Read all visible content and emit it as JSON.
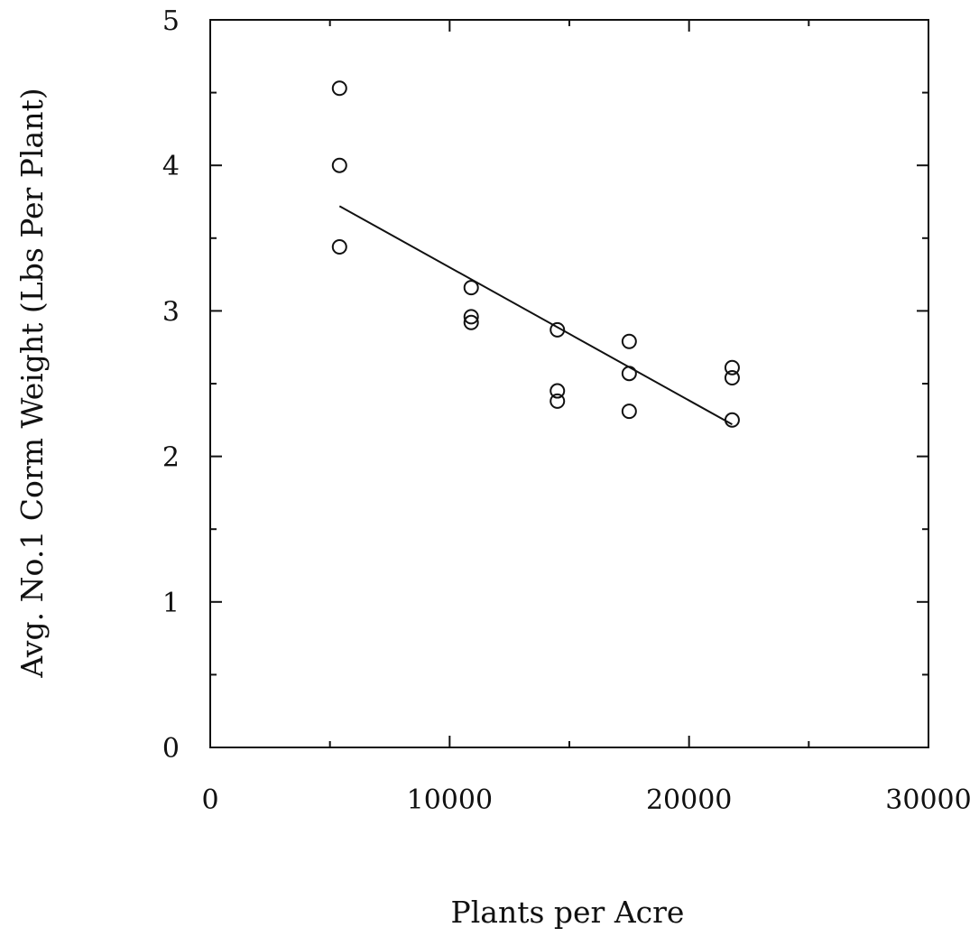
{
  "chart_data": {
    "type": "scatter",
    "title": "",
    "xlabel": "Plants per Acre",
    "ylabel": "Avg. No.1 Corm Weight (Lbs Per Plant)",
    "xlim": [
      0,
      30000
    ],
    "ylim": [
      0,
      5
    ],
    "x_ticks": [
      0,
      10000,
      20000,
      30000
    ],
    "x_tick_labels": [
      "0",
      "10000",
      "20000",
      "30000"
    ],
    "x_minor_ticks": [
      5000,
      15000,
      25000
    ],
    "y_ticks": [
      0,
      1,
      2,
      3,
      4,
      5
    ],
    "y_tick_labels": [
      "0",
      "1",
      "2",
      "3",
      "4",
      "5"
    ],
    "y_minor_ticks": [
      0.5,
      1.5,
      2.5,
      3.5,
      4.5
    ],
    "grid": false,
    "legend": "none",
    "series": [
      {
        "kind": "points",
        "marker": "open-circle",
        "points": [
          {
            "x": 5400,
            "y": 4.53
          },
          {
            "x": 5400,
            "y": 4.0
          },
          {
            "x": 5400,
            "y": 3.44
          },
          {
            "x": 10900,
            "y": 3.16
          },
          {
            "x": 10900,
            "y": 2.96
          },
          {
            "x": 10900,
            "y": 2.92
          },
          {
            "x": 14500,
            "y": 2.87
          },
          {
            "x": 14500,
            "y": 2.45
          },
          {
            "x": 14500,
            "y": 2.38
          },
          {
            "x": 17500,
            "y": 2.79
          },
          {
            "x": 17500,
            "y": 2.57
          },
          {
            "x": 17500,
            "y": 2.31
          },
          {
            "x": 21800,
            "y": 2.61
          },
          {
            "x": 21800,
            "y": 2.54
          },
          {
            "x": 21800,
            "y": 2.25
          }
        ]
      },
      {
        "kind": "regression-line",
        "points": [
          {
            "x": 5400,
            "y": 3.72
          },
          {
            "x": 21800,
            "y": 2.22
          }
        ]
      }
    ],
    "colors": {
      "ink": "#111111",
      "background": "#ffffff"
    }
  }
}
